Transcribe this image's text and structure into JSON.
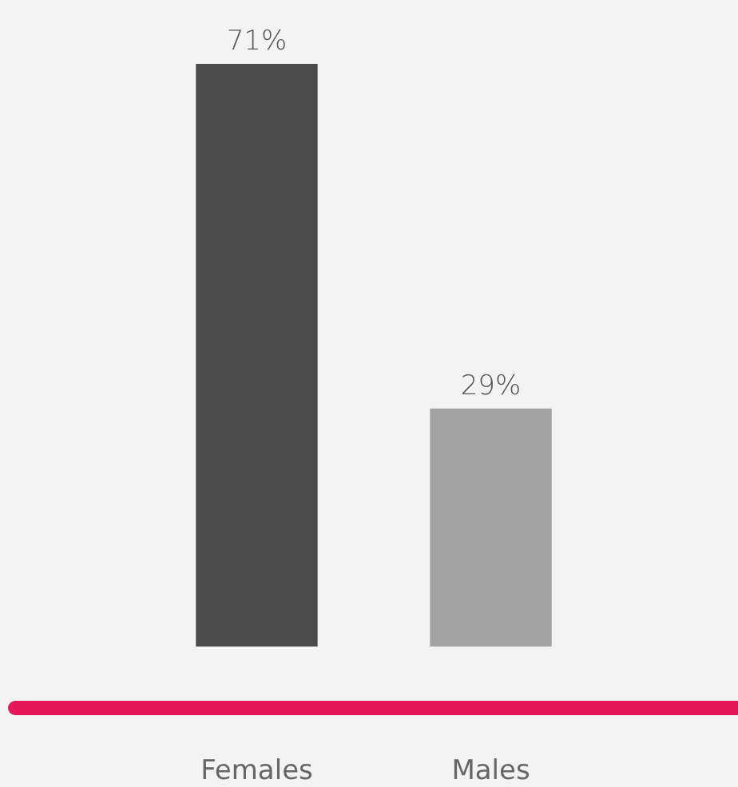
{
  "chart_data": {
    "type": "bar",
    "categories": [
      "Females",
      "Males"
    ],
    "values": [
      71,
      29
    ],
    "colors": [
      "#4b4b4b",
      "#a3a3a3"
    ],
    "value_labels": [
      "71%",
      "29%"
    ]
  }
}
